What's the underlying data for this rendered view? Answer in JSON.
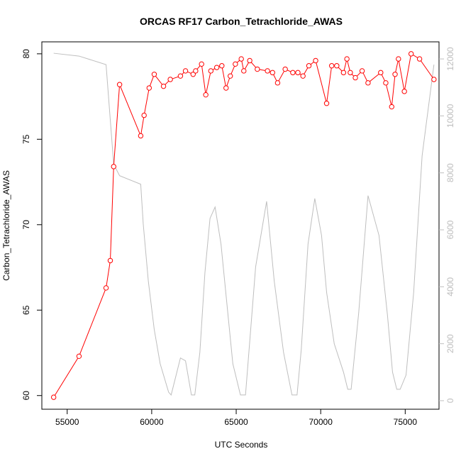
{
  "chart_data": {
    "type": "line",
    "title": "ORCAS RF17 Carbon_Tetrachloride_AWAS",
    "xlabel": "UTC Seconds",
    "ylabel": "Carbon_Tetrachloride_AWAS",
    "xlim": [
      53500,
      77000
    ],
    "ylim": [
      59.2,
      80.7
    ],
    "y2lim": [
      -300,
      12600
    ],
    "x_ticks": [
      55000,
      60000,
      65000,
      70000,
      75000
    ],
    "y_ticks": [
      60,
      65,
      70,
      75,
      80
    ],
    "y2_ticks": [
      0,
      2000,
      4000,
      6000,
      8000,
      10000,
      12000
    ],
    "grid": false,
    "colors": {
      "primary_series": "#ff0000",
      "secondary_series": "#bebebe",
      "secondary_axis": "#bebebe",
      "axes": "#000000"
    },
    "series": [
      {
        "axis": "left",
        "style": "line-with-circle-markers",
        "x": [
          54200,
          55700,
          57300,
          57550,
          57750,
          58100,
          59350,
          59550,
          59850,
          60150,
          60700,
          61100,
          61700,
          62000,
          62450,
          62600,
          62950,
          63200,
          63500,
          63850,
          64150,
          64400,
          64650,
          64950,
          65300,
          65450,
          65800,
          66250,
          66850,
          67150,
          67450,
          67900,
          68350,
          68650,
          68950,
          69300,
          69700,
          70350,
          70650,
          70950,
          71350,
          71550,
          71750,
          72050,
          72450,
          72800,
          73550,
          73850,
          74200,
          74400,
          74600,
          74950,
          75350,
          75850,
          76700
        ],
        "y": [
          59.9,
          62.3,
          66.3,
          67.9,
          73.4,
          78.2,
          75.2,
          76.4,
          78.0,
          78.8,
          78.1,
          78.5,
          78.7,
          79.0,
          78.8,
          79.0,
          79.4,
          77.6,
          79.0,
          79.2,
          79.3,
          78.0,
          78.7,
          79.4,
          79.7,
          79.0,
          79.6,
          79.1,
          79.0,
          78.9,
          78.3,
          79.1,
          78.9,
          78.9,
          78.7,
          79.3,
          79.6,
          77.1,
          79.3,
          79.3,
          78.9,
          79.7,
          78.9,
          78.6,
          79.0,
          78.3,
          78.9,
          78.3,
          76.9,
          78.8,
          79.7,
          77.8,
          80.0,
          79.7,
          78.5
        ]
      },
      {
        "axis": "right",
        "style": "line",
        "x": [
          54200,
          55700,
          57300,
          57750,
          58100,
          59350,
          59500,
          59800,
          60150,
          60500,
          61000,
          61150,
          61700,
          62000,
          62350,
          62550,
          62850,
          63150,
          63450,
          63750,
          64100,
          64450,
          64800,
          65250,
          65550,
          65750,
          66150,
          66800,
          67250,
          67800,
          68300,
          68600,
          68850,
          69250,
          69650,
          70050,
          70350,
          70800,
          71350,
          71600,
          71800,
          72250,
          72800,
          73450,
          73950,
          74250,
          74500,
          74700,
          75050,
          75500,
          76000,
          76700
        ],
        "y": [
          12200,
          12100,
          11800,
          8300,
          7900,
          7600,
          6200,
          4200,
          2500,
          1300,
          300,
          200,
          1500,
          1400,
          200,
          200,
          1700,
          4500,
          6400,
          6800,
          5500,
          3400,
          1300,
          200,
          200,
          1700,
          4700,
          7000,
          4200,
          1700,
          200,
          200,
          1800,
          5500,
          7100,
          5800,
          3800,
          2000,
          1000,
          400,
          400,
          3100,
          7200,
          5800,
          3000,
          1000,
          400,
          400,
          900,
          3800,
          8600,
          11800
        ]
      }
    ]
  }
}
